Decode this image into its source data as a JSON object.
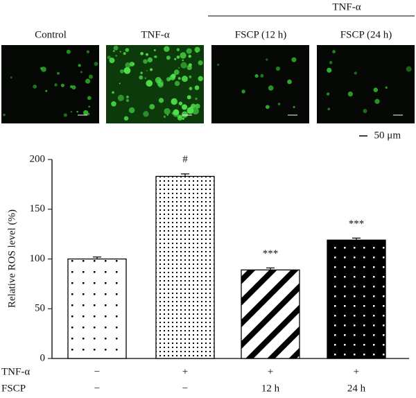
{
  "chart_data": {
    "type": "bar",
    "panels": [
      "Control",
      "TNF-α",
      "FSCP (12 h)",
      "FSCP (24 h)"
    ],
    "panel_group_label": "TNF-α",
    "scale_bar": "50 μm",
    "ylabel": "Relative ROS level (%)",
    "values": [
      100,
      183,
      89,
      119
    ],
    "errors": [
      2,
      2.5,
      2,
      2
    ],
    "annotations": [
      null,
      "#",
      "***",
      "***"
    ],
    "ylim": [
      0,
      200
    ],
    "yticks": [
      0,
      50,
      100,
      150,
      200
    ],
    "condition_rows": [
      {
        "label": "TNF-α",
        "values": [
          "−",
          "+",
          "+",
          "+"
        ]
      },
      {
        "label": "FSCP",
        "values": [
          "−",
          "−",
          "12 h",
          "24 h"
        ]
      }
    ]
  }
}
